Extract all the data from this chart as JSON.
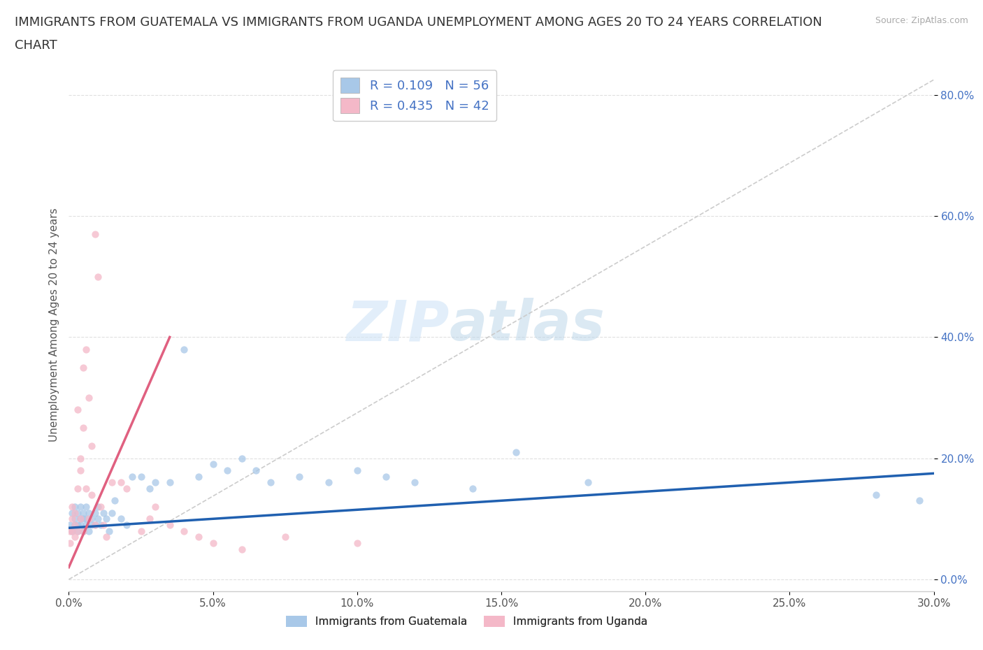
{
  "title_line1": "IMMIGRANTS FROM GUATEMALA VS IMMIGRANTS FROM UGANDA UNEMPLOYMENT AMONG AGES 20 TO 24 YEARS CORRELATION",
  "title_line2": "CHART",
  "source_text": "Source: ZipAtlas.com",
  "ylabel": "Unemployment Among Ages 20 to 24 years",
  "watermark_zip": "ZIP",
  "watermark_atlas": "atlas",
  "xlim": [
    0.0,
    0.3
  ],
  "ylim": [
    -0.02,
    0.86
  ],
  "xticks": [
    0.0,
    0.05,
    0.1,
    0.15,
    0.2,
    0.25,
    0.3
  ],
  "xtick_labels": [
    "0.0%",
    "5.0%",
    "10.0%",
    "15.0%",
    "20.0%",
    "25.0%",
    "30.0%"
  ],
  "yticks_right": [
    0.0,
    0.2,
    0.4,
    0.6,
    0.8
  ],
  "ytick_right_labels": [
    "0.0%",
    "20.0%",
    "40.0%",
    "60.0%",
    "80.0%"
  ],
  "color_guatemala": "#a8c8e8",
  "color_uganda": "#f4b8c8",
  "line_color_guatemala": "#2060b0",
  "line_color_uganda": "#e06080",
  "ref_line_color": "#cccccc",
  "legend_text_1": "R = 0.109   N = 56",
  "legend_text_2": "R = 0.435   N = 42",
  "legend_label_guatemala": "Immigrants from Guatemala",
  "legend_label_uganda": "Immigrants from Uganda",
  "title_fontsize": 13,
  "axis_label_fontsize": 11,
  "tick_fontsize": 11,
  "scatter_alpha": 0.75,
  "scatter_size": 55,
  "guatemala_trend_x": [
    0.0,
    0.3
  ],
  "guatemala_trend_y": [
    0.085,
    0.175
  ],
  "uganda_trend_x": [
    0.0,
    0.035
  ],
  "uganda_trend_y": [
    0.02,
    0.4
  ],
  "ref_line_x": [
    0.0,
    0.3
  ],
  "ref_line_y": [
    0.0,
    0.825
  ],
  "background_color": "#ffffff",
  "grid_color": "#e0e0e0",
  "guatemala_x": [
    0.0005,
    0.001,
    0.001,
    0.002,
    0.002,
    0.002,
    0.003,
    0.003,
    0.003,
    0.004,
    0.004,
    0.004,
    0.005,
    0.005,
    0.005,
    0.006,
    0.006,
    0.006,
    0.007,
    0.007,
    0.008,
    0.008,
    0.009,
    0.009,
    0.01,
    0.01,
    0.011,
    0.012,
    0.013,
    0.014,
    0.015,
    0.016,
    0.018,
    0.02,
    0.022,
    0.025,
    0.028,
    0.03,
    0.035,
    0.04,
    0.045,
    0.05,
    0.055,
    0.06,
    0.065,
    0.07,
    0.08,
    0.09,
    0.1,
    0.11,
    0.12,
    0.14,
    0.155,
    0.18,
    0.28,
    0.295
  ],
  "guatemala_y": [
    0.09,
    0.11,
    0.08,
    0.1,
    0.12,
    0.09,
    0.08,
    0.11,
    0.09,
    0.1,
    0.12,
    0.09,
    0.08,
    0.11,
    0.1,
    0.09,
    0.12,
    0.1,
    0.08,
    0.11,
    0.09,
    0.1,
    0.11,
    0.09,
    0.1,
    0.12,
    0.09,
    0.11,
    0.1,
    0.08,
    0.11,
    0.13,
    0.1,
    0.09,
    0.17,
    0.17,
    0.15,
    0.16,
    0.16,
    0.38,
    0.17,
    0.19,
    0.18,
    0.2,
    0.18,
    0.16,
    0.17,
    0.16,
    0.18,
    0.17,
    0.16,
    0.15,
    0.21,
    0.16,
    0.14,
    0.13
  ],
  "uganda_x": [
    0.0003,
    0.0005,
    0.001,
    0.001,
    0.001,
    0.002,
    0.002,
    0.002,
    0.003,
    0.003,
    0.003,
    0.004,
    0.004,
    0.004,
    0.005,
    0.005,
    0.005,
    0.006,
    0.006,
    0.007,
    0.007,
    0.008,
    0.008,
    0.009,
    0.009,
    0.01,
    0.011,
    0.012,
    0.013,
    0.015,
    0.018,
    0.02,
    0.025,
    0.028,
    0.03,
    0.035,
    0.04,
    0.045,
    0.05,
    0.06,
    0.075,
    0.1
  ],
  "uganda_y": [
    0.08,
    0.06,
    0.1,
    0.08,
    0.12,
    0.09,
    0.07,
    0.11,
    0.15,
    0.08,
    0.28,
    0.2,
    0.18,
    0.1,
    0.35,
    0.25,
    0.08,
    0.15,
    0.38,
    0.3,
    0.1,
    0.22,
    0.14,
    0.09,
    0.57,
    0.5,
    0.12,
    0.09,
    0.07,
    0.16,
    0.16,
    0.15,
    0.08,
    0.1,
    0.12,
    0.09,
    0.08,
    0.07,
    0.06,
    0.05,
    0.07,
    0.06
  ]
}
